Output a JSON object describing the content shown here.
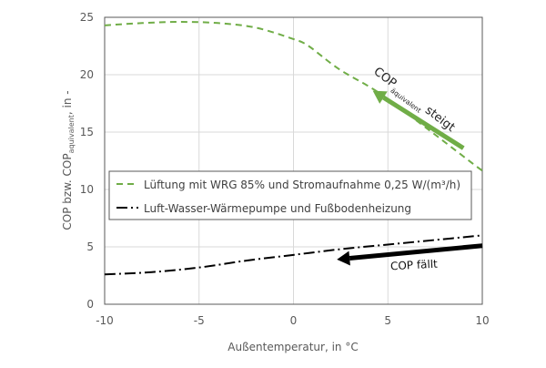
{
  "chart_data": {
    "type": "line",
    "xlabel": "Außentemperatur, in °C",
    "ylabel": {
      "main": "COP bzw. COP",
      "sub": "aquivalent",
      "suffix": ", in -"
    },
    "xlim": [
      -10,
      10
    ],
    "ylim": [
      0,
      25
    ],
    "xticks": [
      "-10",
      "-5",
      "0",
      "5",
      "10"
    ],
    "yticks": [
      "0",
      "5",
      "10",
      "15",
      "20",
      "25"
    ],
    "grid": true,
    "legend_position": "center",
    "series": [
      {
        "name": "Lüftung mit WRG 85% und Stromaufnahme 0,25 W/(m³/h)",
        "color": "#70ad47",
        "style": "dashed",
        "x": [
          -10,
          -8,
          -6,
          -4,
          -2,
          0,
          0.8,
          2.4,
          4.55,
          7,
          9.7,
          10
        ],
        "y": [
          24.3,
          24.5,
          24.6,
          24.5,
          24.1,
          23.1,
          22.5,
          20.5,
          18.4,
          15.4,
          12.0,
          11.7
        ]
      },
      {
        "name": "Luft-Wasser-Wärmepumpe und Fußbodenheizung",
        "color": "#000000",
        "style": "dashdot",
        "x": [
          -10,
          -7.5,
          -5,
          -2.5,
          0,
          2.5,
          5,
          7.5,
          10
        ],
        "y": [
          2.6,
          2.8,
          3.2,
          3.8,
          4.3,
          4.8,
          5.2,
          5.6,
          6.0
        ]
      }
    ],
    "annotations": [
      {
        "text_main": "COP",
        "text_sub": "äquivalent",
        "text_suffix": "steigt",
        "color": "#70ad47",
        "arrow_from": [
          9,
          13.6
        ],
        "arrow_to": [
          4.2,
          18.6
        ]
      },
      {
        "text": "COP fällt",
        "color": "#000000",
        "arrow_from": [
          10,
          5.1
        ],
        "arrow_to": [
          2.3,
          3.9
        ]
      }
    ]
  }
}
